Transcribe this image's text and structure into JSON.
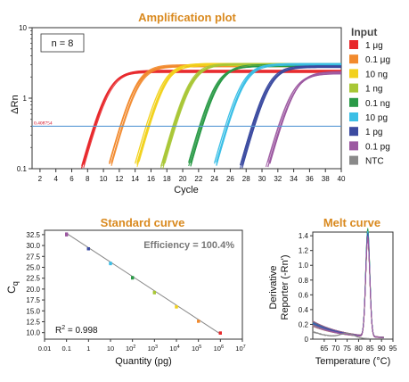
{
  "chart_data": [
    {
      "type": "line",
      "title": "Amplification plot",
      "xlabel": "Cycle",
      "ylabel": "ΔRn",
      "xlim": [
        1,
        40
      ],
      "ylim": [
        0.1,
        10
      ],
      "y_scale": "log",
      "grid": false,
      "legend_placement": "right",
      "legend_title": "Input",
      "x_ticks": [
        2,
        4,
        6,
        8,
        10,
        12,
        14,
        16,
        18,
        20,
        22,
        24,
        26,
        28,
        30,
        32,
        34,
        36,
        38,
        40
      ],
      "y_ticks": [
        {
          "value": 0.1,
          "label": "0.1"
        },
        {
          "value": 1,
          "label": "1"
        },
        {
          "value": 10,
          "label": "10"
        }
      ],
      "annotation_box": "n = 8",
      "threshold": {
        "value": 0.4,
        "label": "0.408754",
        "color": "#5b9bd5"
      },
      "series": [
        {
          "name": "1 μg",
          "color": "#e8282b",
          "ct": 8.9,
          "plateau": 2.4,
          "replicates": 8
        },
        {
          "name": "0.1 μg",
          "color": "#f28a2d",
          "ct": 12.3,
          "plateau": 2.9,
          "replicates": 8
        },
        {
          "name": "10 ng",
          "color": "#f2d11d",
          "ct": 15.6,
          "plateau": 3.0,
          "replicates": 8
        },
        {
          "name": "1 ng",
          "color": "#a8c736",
          "ct": 18.9,
          "plateau": 3.0,
          "replicates": 8
        },
        {
          "name": "0.1 ng",
          "color": "#2a9a47",
          "ct": 22.3,
          "plateau": 2.9,
          "replicates": 8
        },
        {
          "name": "10 pg",
          "color": "#3bbfe6",
          "ct": 25.6,
          "plateau": 3.0,
          "replicates": 8
        },
        {
          "name": "1 pg",
          "color": "#3b4aa0",
          "ct": 28.9,
          "plateau": 2.8,
          "replicates": 8
        },
        {
          "name": "0.1 pg",
          "color": "#9c59a1",
          "ct": 32.3,
          "plateau": 2.3,
          "replicates": 8
        },
        {
          "name": "NTC",
          "color": "#8a8a8a",
          "ct": null,
          "plateau": null,
          "replicates": 8
        }
      ]
    },
    {
      "type": "scatter",
      "title": "Standard curve",
      "xlabel": "Quantity (pg)",
      "ylabel": "Cq",
      "ylabel_main": "C",
      "ylabel_sub": "q",
      "x_scale": "log",
      "xlim": [
        0.01,
        10000000
      ],
      "ylim": [
        8.5,
        33.5
      ],
      "grid": false,
      "x_ticks": [
        {
          "value": 0.01,
          "label": "0.01"
        },
        {
          "value": 0.1,
          "label": "0.1"
        },
        {
          "value": 1,
          "label": "1"
        },
        {
          "value": 10,
          "label": "10"
        },
        {
          "value": 100,
          "base": "10",
          "exp": "2"
        },
        {
          "value": 1000,
          "base": "10",
          "exp": "3"
        },
        {
          "value": 10000,
          "base": "10",
          "exp": "4"
        },
        {
          "value": 100000,
          "base": "10",
          "exp": "5"
        },
        {
          "value": 1000000,
          "base": "10",
          "exp": "6"
        },
        {
          "value": 10000000,
          "base": "10",
          "exp": "7"
        }
      ],
      "y_ticks": [
        "10.0",
        "12.5",
        "15.0",
        "17.5",
        "20.0",
        "22.5",
        "25.0",
        "27.5",
        "30.0",
        "32.5"
      ],
      "efficiency_label": "Efficiency = 100.4%",
      "r2_prefix": "R",
      "r2_sup": "2",
      "r2_value": " = 0.998",
      "fit_line": {
        "x": [
          0.1,
          1000000
        ],
        "y": [
          32.8,
          9.7
        ],
        "color": "#888888"
      },
      "points": [
        {
          "x": 0.1,
          "y": 32.6,
          "spread": 0.3,
          "color": "#9c59a1"
        },
        {
          "x": 1,
          "y": 29.3,
          "spread": 0.4,
          "color": "#3b4aa0"
        },
        {
          "x": 10,
          "y": 25.9,
          "spread": 0.2,
          "color": "#3bbfe6"
        },
        {
          "x": 100,
          "y": 22.6,
          "spread": 0.1,
          "color": "#2a9a47"
        },
        {
          "x": 1000,
          "y": 19.2,
          "spread": 0.1,
          "color": "#a8c736"
        },
        {
          "x": 10000,
          "y": 15.9,
          "spread": 0.1,
          "color": "#f2d11d"
        },
        {
          "x": 100000,
          "y": 12.6,
          "spread": 0.1,
          "color": "#f28a2d"
        },
        {
          "x": 1000000,
          "y": 9.9,
          "spread": 0.1,
          "color": "#e8282b"
        }
      ]
    },
    {
      "type": "line",
      "title": "Melt curve",
      "xlabel": "Temperature (°C)",
      "ylabel_line1": "Derivative",
      "ylabel_line2": "Reporter (-Rn')",
      "xlim": [
        60,
        95
      ],
      "ylim": [
        0,
        1.45
      ],
      "grid": false,
      "x_ticks": [
        65,
        70,
        75,
        80,
        85,
        90,
        95
      ],
      "y_ticks": [
        "0",
        "0.2",
        "0.4",
        "0.6",
        "0.8",
        "1.0",
        "1.2",
        "1.4"
      ],
      "peak_temperature": 84,
      "series": [
        {
          "color": "#e8282b",
          "peak": 1.38
        },
        {
          "color": "#f28a2d",
          "peak": 1.36
        },
        {
          "color": "#f2d11d",
          "peak": 1.4
        },
        {
          "color": "#a8c736",
          "peak": 1.37
        },
        {
          "color": "#2a9a47",
          "peak": 1.42
        },
        {
          "color": "#3bbfe6",
          "peak": 1.41
        },
        {
          "color": "#3b4aa0",
          "peak": 1.39
        },
        {
          "color": "#9c59a1",
          "peak": 1.33
        },
        {
          "color": "#8a8a8a",
          "peak": 0.12
        }
      ]
    }
  ]
}
